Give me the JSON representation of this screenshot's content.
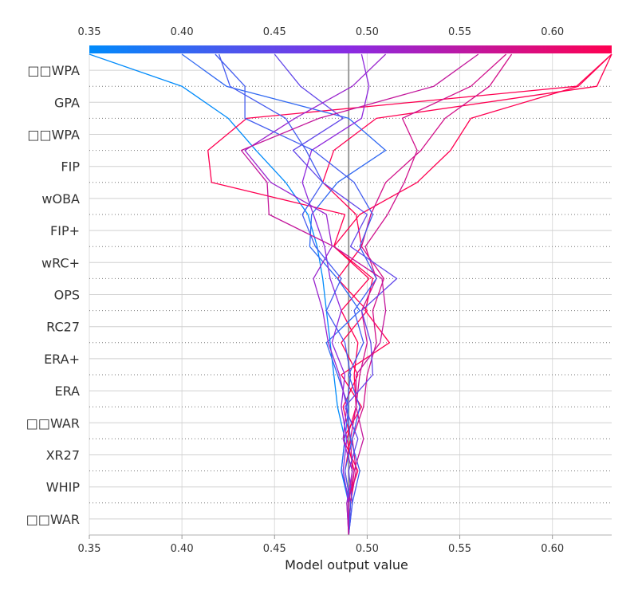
{
  "chart_data": {
    "type": "line",
    "title": "",
    "xlabel": "Model output value",
    "ylabel": "",
    "xlim": [
      0.35,
      0.632
    ],
    "base_value": 0.49,
    "x_ticks": [
      "0.35",
      "0.40",
      "0.45",
      "0.50",
      "0.55",
      "0.60"
    ],
    "x_tick_values": [
      0.35,
      0.4,
      0.45,
      0.5,
      0.55,
      0.6
    ],
    "colorbar": {
      "colormap": "blue-purple-red",
      "stops": [
        "#008bfb",
        "#8a2be2",
        "#ff0051"
      ],
      "range": [
        0.35,
        0.632
      ]
    },
    "features_top_to_bottom": [
      "□□WPA",
      "GPA",
      "□□WPA",
      "FIP",
      "wOBA",
      "FIP+",
      "wRC+",
      "OPS",
      "RC27",
      "ERA+",
      "ERA",
      "□□WAR",
      "XR27",
      "WHIP",
      "□□WAR"
    ],
    "series": [
      {
        "path": [
          0.49,
          0.49,
          0.486,
          0.488,
          0.484,
          0.482,
          0.48,
          0.478,
          0.476,
          0.473,
          0.468,
          0.456,
          0.44,
          0.425,
          0.4,
          0.35
        ]
      },
      {
        "path": [
          0.49,
          0.491,
          0.493,
          0.489,
          0.494,
          0.493,
          0.495,
          0.486,
          0.501,
          0.482,
          0.496,
          0.527,
          0.545,
          0.556,
          0.614,
          0.632
        ]
      },
      {
        "path": [
          0.49,
          0.491,
          0.488,
          0.491,
          0.487,
          0.495,
          0.486,
          0.5,
          0.484,
          0.497,
          0.494,
          0.476,
          0.482,
          0.505,
          0.624,
          0.632
        ]
      },
      {
        "path": [
          0.49,
          0.489,
          0.495,
          0.487,
          0.497,
          0.486,
          0.512,
          0.499,
          0.503,
          0.482,
          0.488,
          0.416,
          0.414,
          0.435,
          0.613,
          0.632
        ]
      },
      {
        "path": [
          0.49,
          0.491,
          0.486,
          0.488,
          0.49,
          0.484,
          0.478,
          0.496,
          0.484,
          0.469,
          0.47,
          0.484,
          0.51,
          0.49,
          0.424,
          0.4
        ]
      },
      {
        "path": [
          0.49,
          0.491,
          0.494,
          0.492,
          0.498,
          0.5,
          0.505,
          0.503,
          0.509,
          0.497,
          0.502,
          0.51,
          0.529,
          0.542,
          0.566,
          0.578
        ]
      },
      {
        "path": [
          0.49,
          0.49,
          0.492,
          0.491,
          0.494,
          0.496,
          0.5,
          0.497,
          0.505,
          0.499,
          0.511,
          0.52,
          0.527,
          0.519,
          0.556,
          0.575
        ]
      },
      {
        "path": [
          0.49,
          0.492,
          0.49,
          0.495,
          0.488,
          0.503,
          0.502,
          0.497,
          0.516,
          0.491,
          0.5,
          0.476,
          0.46,
          0.487,
          0.464,
          0.45
        ]
      },
      {
        "path": [
          0.49,
          0.489,
          0.492,
          0.487,
          0.489,
          0.485,
          0.479,
          0.476,
          0.471,
          0.481,
          0.478,
          0.448,
          0.434,
          0.461,
          0.492,
          0.51
        ]
      },
      {
        "path": [
          0.49,
          0.49,
          0.487,
          0.489,
          0.486,
          0.488,
          0.481,
          0.486,
          0.48,
          0.477,
          0.471,
          0.465,
          0.47,
          0.497,
          0.501,
          0.497
        ]
      },
      {
        "path": [
          0.49,
          0.492,
          0.496,
          0.491,
          0.489,
          0.491,
          0.488,
          0.478,
          0.486,
          0.472,
          0.465,
          0.476,
          0.467,
          0.456,
          0.426,
          0.42
        ]
      },
      {
        "path": [
          0.49,
          0.491,
          0.488,
          0.492,
          0.496,
          0.49,
          0.498,
          0.493,
          0.505,
          0.496,
          0.503,
          0.493,
          0.471,
          0.434,
          0.434,
          0.418
        ]
      },
      {
        "path": [
          0.49,
          0.49,
          0.493,
          0.498,
          0.494,
          0.494,
          0.507,
          0.51,
          0.508,
          0.482,
          0.447,
          0.446,
          0.432,
          0.474,
          0.536,
          0.56
        ]
      }
    ]
  }
}
